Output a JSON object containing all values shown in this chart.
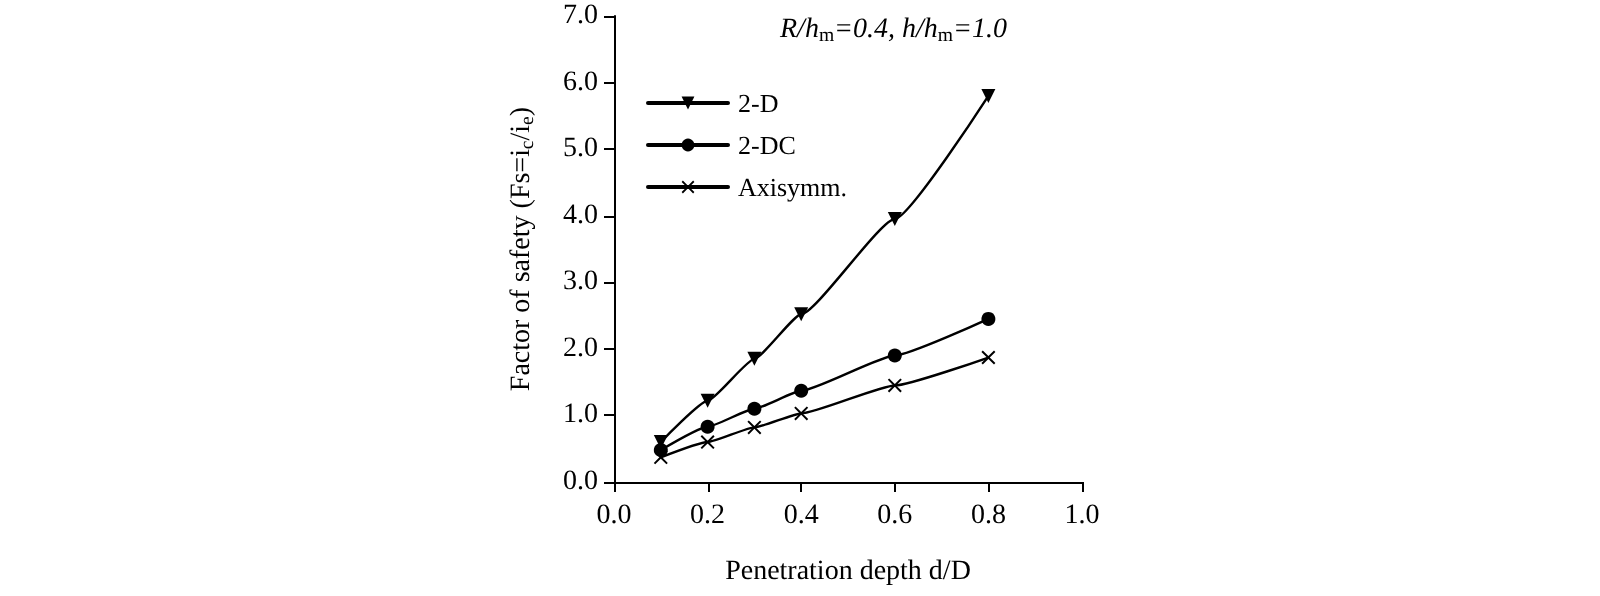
{
  "chart_data": {
    "type": "line",
    "xlabel": "Penetration depth d/D",
    "ylabel": "Factor of safety (Fs=i$_{c}$/i$_{e}$)",
    "annotations": [
      "R/h$_{m}$=0.4, h/h$_{m}$=1.0"
    ],
    "x": [
      0.1,
      0.2,
      0.3,
      0.4,
      0.6,
      0.8
    ],
    "series": [
      {
        "name": "2-D",
        "color": "#000000",
        "marker": "triangle",
        "values": [
          0.6,
          1.22,
          1.85,
          2.52,
          3.95,
          5.8
        ]
      },
      {
        "name": "2-DC",
        "color": "#000000",
        "marker": "circle",
        "values": [
          0.48,
          0.83,
          1.1,
          1.37,
          1.9,
          2.45
        ]
      },
      {
        "name": "Axisymm.",
        "color": "#000000",
        "marker": "cross",
        "values": [
          0.37,
          0.6,
          0.82,
          1.03,
          1.45,
          1.87
        ]
      }
    ],
    "xlim": [
      0,
      1.0
    ],
    "xticks": [
      {
        "value": 0,
        "label": "0.0"
      },
      0.2,
      0.4,
      0.6,
      0.8,
      {
        "value": 1,
        "label": "1.0"
      }
    ],
    "ylim": [
      0,
      7.0
    ],
    "yticks": [
      {
        "value": 0,
        "label": "0.0"
      },
      {
        "value": 1,
        "label": "1.0"
      },
      {
        "value": 2,
        "label": "2.0"
      },
      {
        "value": 3,
        "label": "3.0"
      },
      {
        "value": 4,
        "label": "4.0"
      },
      {
        "value": 5,
        "label": "5.0"
      },
      {
        "value": 6,
        "label": "6.0"
      },
      {
        "value": 7,
        "label": "7.0"
      }
    ],
    "grid": false,
    "legend": "top left",
    "line_style": "solid"
  }
}
